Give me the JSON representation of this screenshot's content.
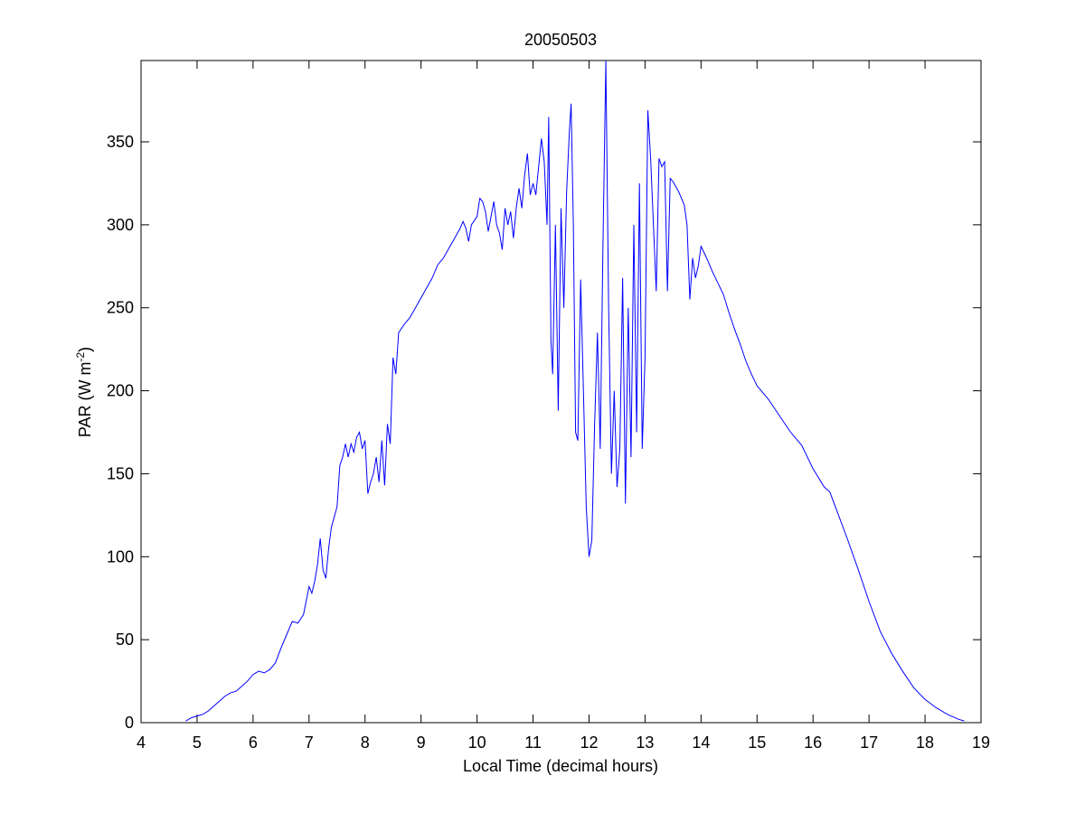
{
  "chart_data": {
    "type": "line",
    "title": "20050503",
    "x_label": "Local Time (decimal hours)",
    "y_label_parts": [
      "PAR (W m",
      "-2",
      ")"
    ],
    "color": "#0000ff",
    "xlim": [
      4,
      19
    ],
    "ylim": [
      0,
      399
    ],
    "xticks": [
      4,
      5,
      6,
      7,
      8,
      9,
      10,
      11,
      12,
      13,
      14,
      15,
      16,
      17,
      18,
      19
    ],
    "yticks": [
      0,
      50,
      100,
      150,
      200,
      250,
      300,
      350
    ],
    "x": [
      4.8,
      4.9,
      5.0,
      5.1,
      5.2,
      5.3,
      5.4,
      5.5,
      5.6,
      5.7,
      5.8,
      5.9,
      6.0,
      6.1,
      6.2,
      6.3,
      6.4,
      6.5,
      6.6,
      6.7,
      6.8,
      6.9,
      7.0,
      7.05,
      7.1,
      7.15,
      7.2,
      7.25,
      7.3,
      7.35,
      7.4,
      7.5,
      7.55,
      7.6,
      7.65,
      7.7,
      7.75,
      7.8,
      7.85,
      7.9,
      7.95,
      8.0,
      8.05,
      8.1,
      8.15,
      8.2,
      8.25,
      8.3,
      8.35,
      8.4,
      8.45,
      8.5,
      8.55,
      8.6,
      8.7,
      8.8,
      8.9,
      9.0,
      9.1,
      9.2,
      9.3,
      9.4,
      9.5,
      9.6,
      9.7,
      9.75,
      9.8,
      9.85,
      9.9,
      10.0,
      10.05,
      10.1,
      10.15,
      10.2,
      10.3,
      10.35,
      10.4,
      10.45,
      10.5,
      10.55,
      10.6,
      10.65,
      10.7,
      10.75,
      10.8,
      10.85,
      10.9,
      10.95,
      11.0,
      11.05,
      11.1,
      11.15,
      11.2,
      11.25,
      11.28,
      11.32,
      11.35,
      11.4,
      11.45,
      11.5,
      11.55,
      11.6,
      11.65,
      11.68,
      11.72,
      11.76,
      11.8,
      11.85,
      11.9,
      11.95,
      12.0,
      12.05,
      12.1,
      12.15,
      12.2,
      12.25,
      12.3,
      12.35,
      12.4,
      12.45,
      12.5,
      12.55,
      12.6,
      12.65,
      12.7,
      12.75,
      12.8,
      12.85,
      12.9,
      12.95,
      13.0,
      13.05,
      13.1,
      13.15,
      13.2,
      13.25,
      13.3,
      13.35,
      13.4,
      13.45,
      13.5,
      13.6,
      13.7,
      13.75,
      13.8,
      13.85,
      13.9,
      13.95,
      14.0,
      14.1,
      14.2,
      14.3,
      14.4,
      14.5,
      14.6,
      14.7,
      14.8,
      14.9,
      15.0,
      15.2,
      15.4,
      15.6,
      15.8,
      16.0,
      16.2,
      16.3,
      16.4,
      16.6,
      16.8,
      17.0,
      17.2,
      17.4,
      17.6,
      17.8,
      18.0,
      18.2,
      18.4,
      18.6,
      18.7
    ],
    "values": [
      1,
      3,
      4,
      5,
      7,
      10,
      13,
      16,
      18,
      19,
      22,
      25,
      29,
      31,
      30,
      32,
      36,
      45,
      53,
      61,
      60,
      65,
      82,
      78,
      85,
      95,
      111,
      92,
      87,
      105,
      118,
      130,
      155,
      160,
      168,
      160,
      168,
      163,
      172,
      175,
      165,
      170,
      138,
      145,
      150,
      160,
      145,
      170,
      143,
      180,
      168,
      220,
      210,
      235,
      240,
      244,
      250,
      256,
      262,
      268,
      276,
      280,
      286,
      292,
      298,
      302,
      298,
      290,
      300,
      305,
      316,
      314,
      308,
      296,
      314,
      300,
      295,
      285,
      310,
      300,
      308,
      292,
      310,
      322,
      310,
      330,
      343,
      318,
      325,
      318,
      335,
      352,
      338,
      300,
      365,
      230,
      210,
      300,
      188,
      310,
      250,
      320,
      357,
      373,
      300,
      175,
      170,
      267,
      200,
      130,
      100,
      110,
      180,
      235,
      165,
      290,
      399,
      250,
      150,
      200,
      142,
      165,
      268,
      132,
      250,
      160,
      300,
      175,
      325,
      165,
      220,
      369,
      340,
      300,
      260,
      340,
      335,
      338,
      260,
      328,
      326,
      320,
      312,
      300,
      255,
      280,
      268,
      275,
      287,
      280,
      272,
      265,
      258,
      247,
      237,
      228,
      218,
      210,
      203,
      195,
      185,
      175,
      167,
      153,
      142,
      139,
      130,
      112,
      93,
      73,
      55,
      42,
      31,
      21,
      14,
      9,
      5,
      2,
      1
    ]
  }
}
